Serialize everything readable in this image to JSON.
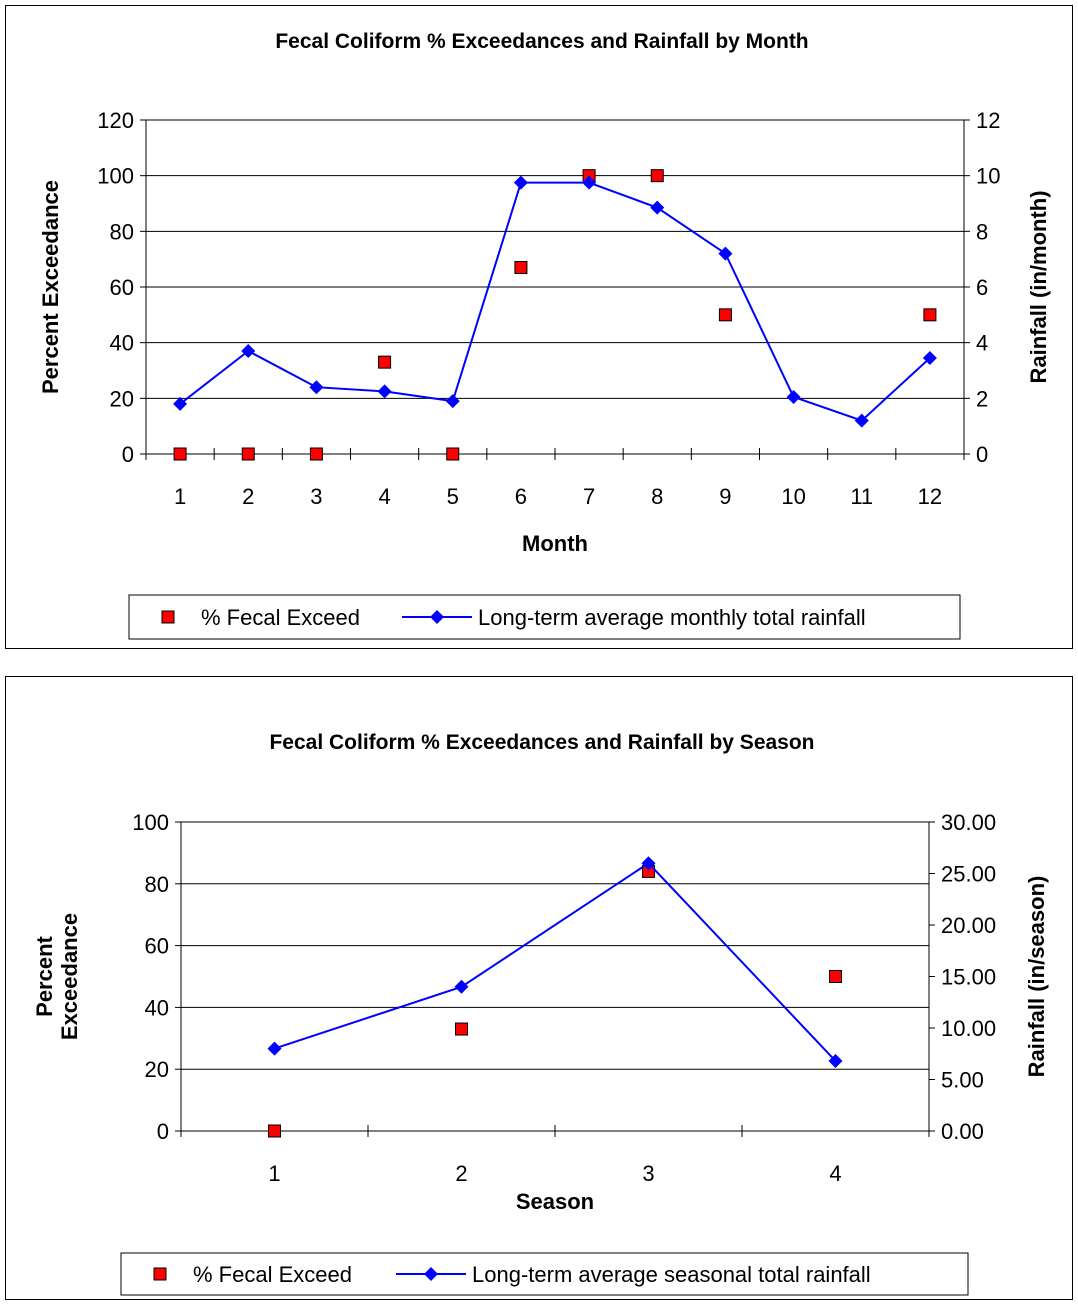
{
  "chart_data": [
    {
      "type": "scatter+line",
      "title": "Fecal Coliform % Exceedances and Rainfall by Month",
      "xlabel": "Month",
      "ylabel_left": "Percent Exceedance",
      "ylabel_right": "Rainfall (in/month)",
      "categories": [
        "1",
        "2",
        "3",
        "4",
        "5",
        "6",
        "7",
        "8",
        "9",
        "10",
        "11",
        "12"
      ],
      "ylim_left": [
        0,
        120
      ],
      "yticks_left": [
        "0",
        "20",
        "40",
        "60",
        "80",
        "100",
        "120"
      ],
      "ylim_right": [
        0,
        12
      ],
      "yticks_right": [
        "0",
        "2",
        "4",
        "6",
        "8",
        "10",
        "12"
      ],
      "grid": true,
      "legend_position": "bottom",
      "series": [
        {
          "name": "% Fecal Exceed",
          "kind": "scatter",
          "axis": "left",
          "color": "#ff0000",
          "values": [
            0,
            0,
            0,
            33,
            0,
            67,
            100,
            100,
            50,
            null,
            null,
            50
          ]
        },
        {
          "name": "Long-term average monthly total rainfall",
          "kind": "line",
          "axis": "right",
          "color": "#0000ff",
          "values": [
            1.8,
            3.7,
            2.4,
            2.25,
            1.9,
            9.75,
            9.75,
            8.85,
            7.2,
            2.05,
            1.2,
            3.45
          ]
        }
      ]
    },
    {
      "type": "scatter+line",
      "title": "Fecal Coliform % Exceedances and Rainfall by Season",
      "xlabel": "Season",
      "ylabel_left_lines": [
        "Percent",
        "Exceedance"
      ],
      "ylabel_right": "Rainfall (in/season)",
      "categories": [
        "1",
        "2",
        "3",
        "4"
      ],
      "ylim_left": [
        0,
        100
      ],
      "yticks_left": [
        "0",
        "20",
        "40",
        "60",
        "80",
        "100"
      ],
      "ylim_right": [
        0,
        30
      ],
      "yticks_right": [
        "0.00",
        "5.00",
        "10.00",
        "15.00",
        "20.00",
        "25.00",
        "30.00"
      ],
      "grid": true,
      "legend_position": "bottom",
      "series": [
        {
          "name": "% Fecal Exceed",
          "kind": "scatter",
          "axis": "left",
          "color": "#ff0000",
          "values": [
            0,
            33,
            84,
            50
          ]
        },
        {
          "name": "Long-term average seasonal total rainfall",
          "kind": "line",
          "axis": "right",
          "color": "#0000ff",
          "values": [
            8.0,
            14.0,
            26.0,
            6.8
          ]
        }
      ]
    }
  ]
}
